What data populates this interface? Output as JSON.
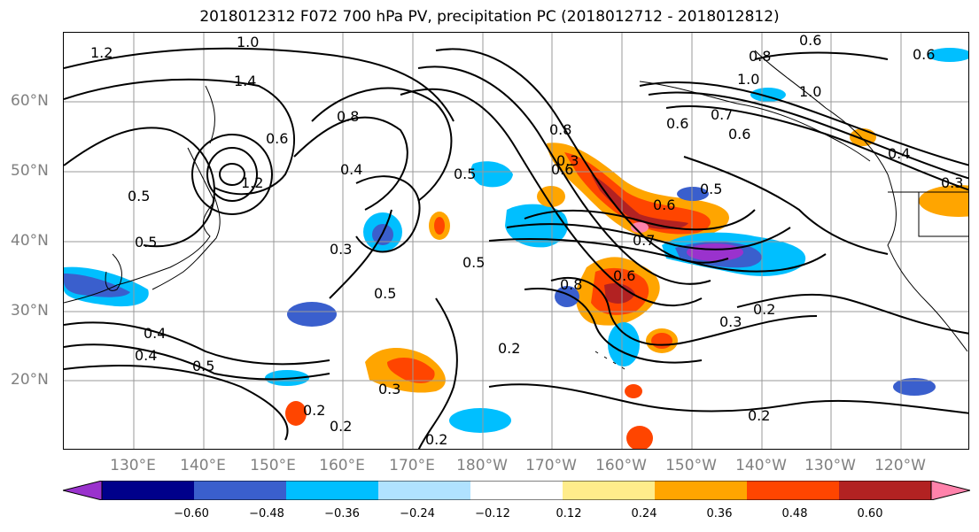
{
  "title": "2018012312 F072 700 hPa PV, precipitation PC (2018012712 - 2018012812)",
  "lat_labels": [
    "60°N",
    "50°N",
    "40°N",
    "30°N",
    "20°N"
  ],
  "lon_labels": [
    "130°E",
    "140°E",
    "150°E",
    "160°E",
    "170°E",
    "180°W",
    "170°W",
    "160°W",
    "150°W",
    "140°W",
    "130°W",
    "120°W"
  ],
  "contour_labels": [
    "1.2",
    "1.0",
    "1.4",
    "0.6",
    "0.8",
    "0.4",
    "0.5",
    "1.2",
    "0.5",
    "0.5",
    "0.3",
    "0.4",
    "0.5",
    "0.4",
    "0.5",
    "0.3",
    "0.8",
    "0.6",
    "0.5",
    "0.6",
    "0.7",
    "0.8",
    "0.6",
    "0.5",
    "0.3",
    "0.2",
    "0.2",
    "0.2",
    "0.3",
    "0.2",
    "0.2",
    "0.8",
    "1.0",
    "0.6",
    "0.6",
    "1.0",
    "0.4",
    "0.3",
    "0.7",
    "0.6",
    "0.6",
    "0.2"
  ],
  "colorbar": {
    "colors": [
      "#9a32cd",
      "#00008b",
      "#3a5fcd",
      "#00bfff",
      "#b0e2ff",
      "#ffffff",
      "#ffec8b",
      "#ffa500",
      "#ff4500",
      "#b22222",
      "#ff82ab"
    ],
    "ticks": [
      "−0.60",
      "−0.48",
      "−0.36",
      "−0.24",
      "−0.12",
      "0.12",
      "0.24",
      "0.36",
      "0.48",
      "0.60"
    ]
  }
}
